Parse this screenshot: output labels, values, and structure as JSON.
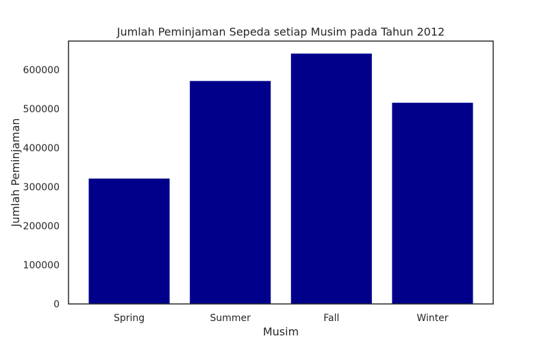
{
  "chart_data": {
    "type": "bar",
    "title": "Jumlah Peminjaman Sepeda setiap Musim pada Tahun 2012",
    "xlabel": "Musim",
    "ylabel": "Jumlah Peminjaman",
    "categories": [
      "Spring",
      "Summer",
      "Fall",
      "Winter"
    ],
    "values": [
      321300,
      571300,
      641500,
      515500
    ],
    "ylim": [
      0,
      673600
    ],
    "yticks": [
      0,
      100000,
      200000,
      300000,
      400000,
      500000,
      600000
    ],
    "ytick_labels": [
      "0",
      "100000",
      "200000",
      "300000",
      "400000",
      "500000",
      "600000"
    ],
    "bar_color": "#00008b",
    "grid": false,
    "legend": "none"
  }
}
